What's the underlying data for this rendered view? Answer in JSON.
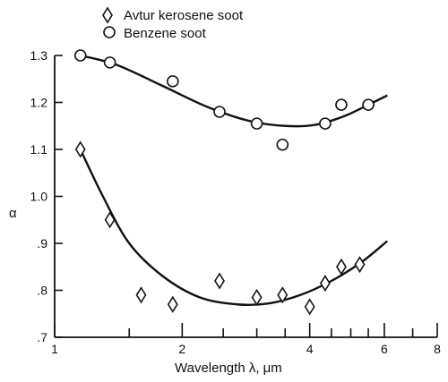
{
  "chart_data": {
    "type": "scatter",
    "xlabel": "Wavelength  λ, μm",
    "ylabel": "α",
    "xscale": "log",
    "xlim": [
      1,
      8
    ],
    "ylim": [
      0.7,
      1.3
    ],
    "x_ticks": [
      1,
      1.5,
      2,
      2.5,
      3,
      3.5,
      4,
      4.5,
      5,
      5.5,
      6,
      7,
      8
    ],
    "x_tick_labels": [
      {
        "x": 1,
        "label": "1"
      },
      {
        "x": 2,
        "label": "2"
      },
      {
        "x": 4,
        "label": "4"
      },
      {
        "x": 6,
        "label": "6"
      },
      {
        "x": 8,
        "label": "8"
      }
    ],
    "y_ticks": [
      {
        "y": 0.7,
        "label": ".7"
      },
      {
        "y": 0.8,
        "label": ".8"
      },
      {
        "y": 0.9,
        "label": ".9"
      },
      {
        "y": 1.0,
        "label": "1.0"
      },
      {
        "y": 1.1,
        "label": "1.1"
      },
      {
        "y": 1.2,
        "label": "1.2"
      },
      {
        "y": 1.3,
        "label": "1.3"
      }
    ],
    "legend": {
      "placement": "top-left"
    },
    "series": [
      {
        "name": "Avtur kerosene soot",
        "marker": "diamond",
        "points": [
          {
            "x": 1.15,
            "y": 1.1
          },
          {
            "x": 1.35,
            "y": 0.95
          },
          {
            "x": 1.6,
            "y": 0.79
          },
          {
            "x": 1.9,
            "y": 0.77
          },
          {
            "x": 2.45,
            "y": 0.82
          },
          {
            "x": 3.0,
            "y": 0.785
          },
          {
            "x": 3.45,
            "y": 0.79
          },
          {
            "x": 4.0,
            "y": 0.765
          },
          {
            "x": 4.35,
            "y": 0.815
          },
          {
            "x": 4.75,
            "y": 0.85
          },
          {
            "x": 5.25,
            "y": 0.855
          }
        ],
        "curve": [
          {
            "x": 1.15,
            "y": 1.1
          },
          {
            "x": 1.3,
            "y": 1.0
          },
          {
            "x": 1.5,
            "y": 0.9
          },
          {
            "x": 1.8,
            "y": 0.83
          },
          {
            "x": 2.2,
            "y": 0.785
          },
          {
            "x": 2.7,
            "y": 0.77
          },
          {
            "x": 3.2,
            "y": 0.772
          },
          {
            "x": 3.8,
            "y": 0.79
          },
          {
            "x": 4.5,
            "y": 0.82
          },
          {
            "x": 5.3,
            "y": 0.86
          },
          {
            "x": 6.1,
            "y": 0.905
          }
        ]
      },
      {
        "name": "Benzene soot",
        "marker": "circle",
        "points": [
          {
            "x": 1.15,
            "y": 1.3
          },
          {
            "x": 1.35,
            "y": 1.285
          },
          {
            "x": 1.9,
            "y": 1.245
          },
          {
            "x": 2.45,
            "y": 1.18
          },
          {
            "x": 3.0,
            "y": 1.155
          },
          {
            "x": 3.45,
            "y": 1.11
          },
          {
            "x": 4.35,
            "y": 1.155
          },
          {
            "x": 4.75,
            "y": 1.195
          },
          {
            "x": 5.5,
            "y": 1.195
          }
        ],
        "curve": [
          {
            "x": 1.15,
            "y": 1.3
          },
          {
            "x": 1.4,
            "y": 1.28
          },
          {
            "x": 1.8,
            "y": 1.235
          },
          {
            "x": 2.3,
            "y": 1.19
          },
          {
            "x": 2.9,
            "y": 1.16
          },
          {
            "x": 3.5,
            "y": 1.15
          },
          {
            "x": 4.1,
            "y": 1.152
          },
          {
            "x": 4.8,
            "y": 1.17
          },
          {
            "x": 5.5,
            "y": 1.195
          },
          {
            "x": 6.1,
            "y": 1.215
          }
        ]
      }
    ]
  }
}
